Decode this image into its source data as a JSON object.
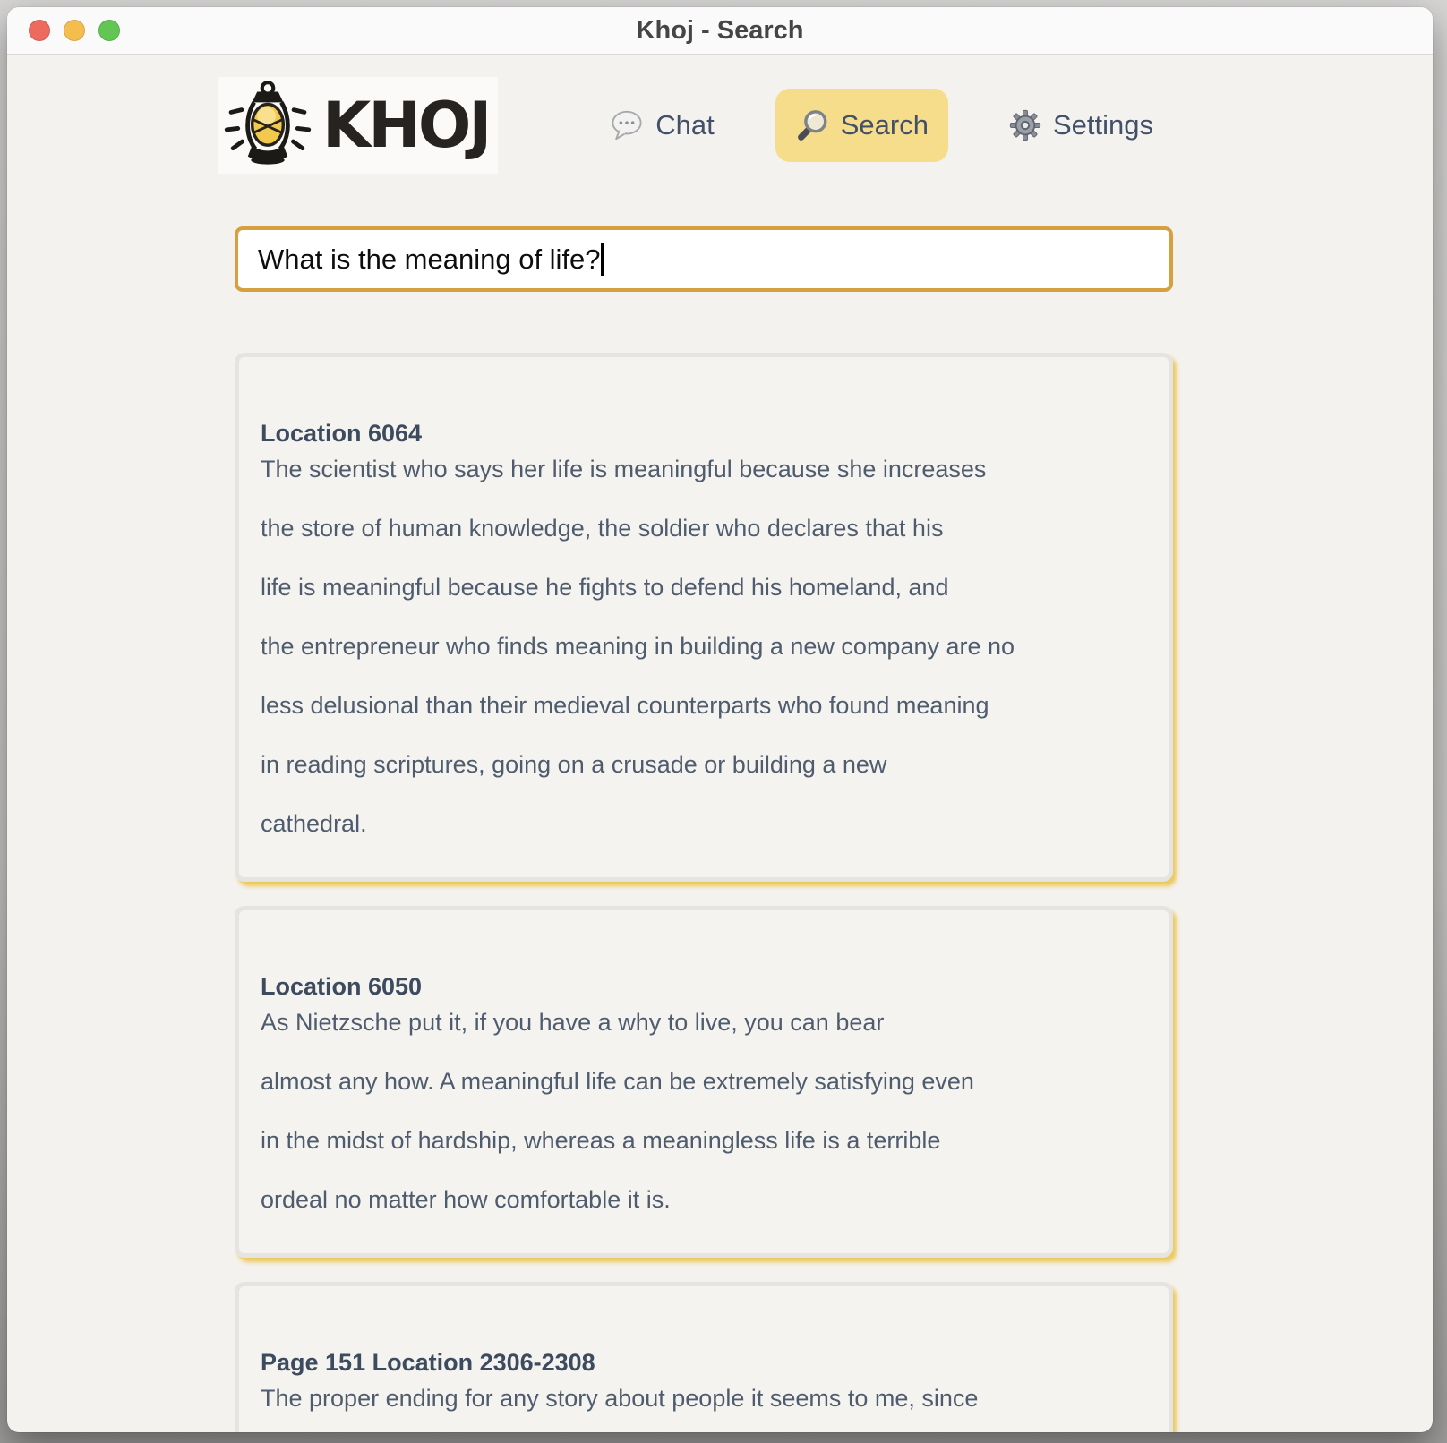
{
  "window": {
    "title": "Khoj - Search",
    "traffic_lights": {
      "close_color": "#ed6a5f",
      "minimize_color": "#f5bd4e",
      "zoom_color": "#62c554"
    }
  },
  "logo": {
    "text": "KHOJ",
    "icon": "lantern-icon",
    "glow_color": "#f2c94c"
  },
  "nav": {
    "items": [
      {
        "label": "Chat",
        "icon": "speech-bubble-icon",
        "active": false
      },
      {
        "label": "Search",
        "icon": "magnifier-icon",
        "active": true
      },
      {
        "label": "Settings",
        "icon": "gear-icon",
        "active": false
      }
    ],
    "active_bg_color": "#f6dd8b"
  },
  "search": {
    "value": "What is the meaning of life?",
    "border_color": "#d6a041"
  },
  "results": [
    {
      "heading": "Location 6064",
      "lines": [
        "The scientist who says her life is meaningful because she increases",
        "the store of human knowledge, the soldier who declares that his",
        "life is meaningful because he fights to defend his homeland, and",
        "the entrepreneur who finds meaning in building a new company are no",
        "less delusional than their medieval counterparts who found meaning",
        "in reading scriptures, going on a crusade or building a new",
        "cathedral."
      ]
    },
    {
      "heading": "Location 6050",
      "lines": [
        "As Nietzsche put it, if you have a why to live, you can bear",
        "almost any how. A meaningful life can be extremely satisfying even",
        "in the midst of hardship, whereas a meaningless life is a terrible",
        "ordeal no matter how comfortable it is."
      ]
    },
    {
      "heading": "Page 151 Location 2306-2308",
      "lines": [
        "The proper ending for any story about people it seems to me, since"
      ]
    }
  ],
  "theme": {
    "card_shadow_color": "#e9c242",
    "page_bg": "#f4f2ef",
    "heading_color": "#3d4b5e",
    "body_color": "#4e5c6e"
  }
}
